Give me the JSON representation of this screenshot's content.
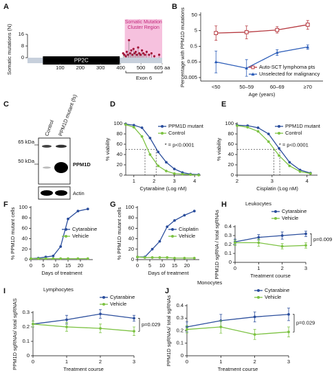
{
  "chart_data": [
    {
      "type": "lollipop",
      "panel": "A",
      "ylabel": "Somatic mutations (N)",
      "xlim": [
        0,
        605
      ],
      "xticks": [
        100,
        200,
        300,
        400,
        500,
        {
          "value": 605,
          "label": "605 aa"
        }
      ],
      "ylim": [
        0,
        16
      ],
      "yticks": [
        0,
        8,
        16
      ],
      "domain": {
        "name": "PP2C",
        "start": 15,
        "end": 395
      },
      "region": {
        "label": "Somatic Mutation Cluster Region",
        "start": 420,
        "end": 605
      },
      "exon": {
        "label": "Exon 6",
        "start": 425,
        "end": 605
      },
      "positions": [
        412,
        418,
        425,
        430,
        436,
        441,
        447,
        452,
        458,
        463,
        469,
        474,
        480,
        486,
        492,
        498,
        505,
        512,
        520,
        528,
        540,
        552,
        566,
        590
      ],
      "values": [
        3,
        2,
        1,
        4,
        2,
        12,
        3,
        5,
        2,
        6,
        3,
        4,
        2,
        7,
        3,
        2,
        5,
        3,
        2,
        4,
        2,
        3,
        1,
        2
      ],
      "color": "#a3163a"
    },
    {
      "type": "line",
      "panel": "B",
      "xlabel": "Age (years)",
      "ylabel": "Percentage with PPM1D mutations",
      "categories": [
        "<50",
        "50–59",
        "60–69",
        "≥70"
      ],
      "ylog": true,
      "ylim": [
        0.003,
        60
      ],
      "yticks": [
        0.005,
        0.05,
        0.5,
        5,
        50
      ],
      "legend": "lower right",
      "series": [
        {
          "name": "Auto-SCT lymphoma pts",
          "color": "#b5363d",
          "marker": "square",
          "values": [
            3.5,
            4,
            5.5,
            12
          ],
          "lower": [
            1.2,
            1.5,
            3.5,
            6
          ],
          "upper": [
            10,
            10,
            9,
            22
          ]
        },
        {
          "name": "Unselected for malignancy",
          "color": "#2b5cb8",
          "marker": "triangle",
          "values": [
            0.05,
            0.02,
            0.2,
            0.45
          ],
          "lower": [
            0.01,
            0.006,
            0.13,
            0.32
          ],
          "upper": [
            0.25,
            0.07,
            0.3,
            0.62
          ]
        }
      ]
    },
    {
      "type": "line",
      "panel": "D",
      "xlabel": "Cytarabine (Log nM)",
      "ylabel": "% viability",
      "x": [
        0.6,
        1.0,
        1.4,
        1.8,
        2.2,
        2.6,
        3.0,
        3.4,
        3.8,
        4.2
      ],
      "xlim": [
        0.6,
        4.3
      ],
      "xticks": [
        1,
        2,
        3,
        4
      ],
      "ylim": [
        0,
        100
      ],
      "yticks": [
        0,
        20,
        40,
        60,
        80,
        100
      ],
      "legend": "upper right",
      "annotation": "* = p<0.0001",
      "ref": {
        "x": [
          1.55,
          2.1
        ],
        "y": 50
      },
      "series": [
        {
          "name": "PPM1D mutant",
          "color": "#2a4d9c",
          "marker": "circle",
          "values": [
            99,
            97,
            92,
            72,
            45,
            25,
            12,
            5,
            2,
            1
          ]
        },
        {
          "name": "Control",
          "color": "#7cc242",
          "marker": "circle",
          "values": [
            98,
            93,
            75,
            40,
            18,
            8,
            3,
            2,
            1,
            0
          ]
        }
      ]
    },
    {
      "type": "line",
      "panel": "E",
      "xlabel": "Cisplatin (Log nM)",
      "ylabel": "% viability",
      "x": [
        2.0,
        2.3,
        2.6,
        2.9,
        3.2,
        3.5,
        3.8,
        4.1
      ],
      "xlim": [
        2,
        4.3
      ],
      "xticks": [
        2,
        3,
        4
      ],
      "ylim": [
        0,
        100
      ],
      "yticks": [
        0,
        20,
        40,
        60,
        80,
        100
      ],
      "legend": "upper right",
      "annotation": "* = p<0.0001",
      "ref": {
        "x": [
          3.05,
          3.22
        ],
        "y": 50
      },
      "series": [
        {
          "name": "PPM1D mutant",
          "color": "#2a4d9c",
          "marker": "circle",
          "values": [
            97,
            96,
            92,
            80,
            52,
            25,
            10,
            4
          ]
        },
        {
          "name": "Control",
          "color": "#7cc242",
          "marker": "circle",
          "values": [
            96,
            93,
            85,
            65,
            38,
            18,
            7,
            3
          ]
        }
      ]
    },
    {
      "type": "line",
      "panel": "F",
      "xlabel": "Days of treatment",
      "ylabel": "% PPM1D mutant cells",
      "x": [
        0,
        3,
        6,
        9,
        12,
        15,
        19,
        23
      ],
      "xlim": [
        0,
        25
      ],
      "xticks": [
        0,
        5,
        10,
        15,
        20
      ],
      "ylim": [
        0,
        100
      ],
      "yticks": [
        0,
        20,
        40,
        60,
        80,
        100
      ],
      "legend": "center right",
      "series": [
        {
          "name": "Cytarabine",
          "color": "#2a4d9c",
          "marker": "circle",
          "values": [
            2,
            3,
            5,
            7,
            25,
            78,
            93,
            97
          ]
        },
        {
          "name": "Vehicle",
          "color": "#7cc242",
          "marker": "circle",
          "values": [
            2,
            2,
            2,
            2,
            2,
            2,
            2,
            2
          ]
        }
      ]
    },
    {
      "type": "line",
      "panel": "G",
      "xlabel": "Days of treatment",
      "ylabel": "% PPM1D mutant cells",
      "x": [
        0,
        3,
        6,
        9,
        12,
        15,
        19,
        23
      ],
      "xlim": [
        0,
        25
      ],
      "xticks": [
        0,
        5,
        10,
        15,
        20
      ],
      "ylim": [
        0,
        100
      ],
      "yticks": [
        0,
        20,
        40,
        60,
        80,
        100
      ],
      "legend": "center right",
      "series": [
        {
          "name": "Cisplatin",
          "color": "#2a4d9c",
          "marker": "circle",
          "values": [
            5,
            5,
            20,
            35,
            63,
            75,
            85,
            93
          ]
        },
        {
          "name": "Vehicle",
          "color": "#7cc242",
          "marker": "circle",
          "values": [
            5,
            4,
            4,
            4,
            4,
            3,
            3,
            3
          ]
        }
      ]
    },
    {
      "type": "line",
      "panel": "H",
      "title": "Leukocytes",
      "xlabel": "Treatment course",
      "ylabel": "PPM1D sgRNA / total sgRNAs",
      "x": [
        0,
        1,
        2,
        3
      ],
      "xlim": [
        0,
        3
      ],
      "xticks": [
        0,
        1,
        2,
        3
      ],
      "ylim": [
        0,
        0.4
      ],
      "yticks": [
        0,
        0.1,
        0.2,
        0.3,
        0.4
      ],
      "legend": "top",
      "annotation": "p=0.009",
      "bracket": true,
      "series": [
        {
          "name": "Cytarabine",
          "color": "#2a4d9c",
          "marker": "circle",
          "values": [
            0.23,
            0.28,
            0.3,
            0.32
          ],
          "errors": [
            0.03,
            0.03,
            0.04,
            0.03
          ]
        },
        {
          "name": "Vehicle",
          "color": "#7cc242",
          "marker": "circle",
          "values": [
            0.22,
            0.22,
            0.18,
            0.19
          ],
          "errors": [
            0.03,
            0.04,
            0.03,
            0.03
          ]
        }
      ]
    },
    {
      "type": "line",
      "panel": "I",
      "title": "Lymphocytes",
      "xlabel": "Treatment course",
      "ylabel": "PPM1D sgRNAs/ total sgRNAS",
      "x": [
        0,
        1,
        2,
        3
      ],
      "xlim": [
        0,
        3
      ],
      "xticks": [
        0,
        1,
        2,
        3
      ],
      "ylim": [
        0,
        0.3
      ],
      "yticks": [
        0,
        0.1,
        0.2,
        0.3
      ],
      "legend": "top",
      "annotation": "p=0.029",
      "bracket": true,
      "series": [
        {
          "name": "Cytarabine",
          "color": "#2a4d9c",
          "marker": "circle",
          "values": [
            0.22,
            0.25,
            0.29,
            0.26
          ],
          "errors": [
            0.02,
            0.03,
            0.03,
            0.02
          ]
        },
        {
          "name": "Vehicle",
          "color": "#7cc242",
          "marker": "circle",
          "values": [
            0.22,
            0.2,
            0.19,
            0.17
          ],
          "errors": [
            0.02,
            0.03,
            0.03,
            0.03
          ]
        }
      ]
    },
    {
      "type": "line",
      "panel": "J",
      "title": "Monocytes",
      "xlabel": "Treatment course",
      "ylabel": "PPM1D sgRNAs/ total sgRNAs",
      "x": [
        0,
        1,
        2,
        3
      ],
      "xlim": [
        0,
        3
      ],
      "xticks": [
        0,
        1,
        2,
        3
      ],
      "ylim": [
        0,
        0.4
      ],
      "yticks": [
        0,
        0.1,
        0.2,
        0.3,
        0.4
      ],
      "legend": "top",
      "annotation": "p=0.029",
      "bracket": true,
      "series": [
        {
          "name": "Cytarabine",
          "color": "#2a4d9c",
          "marker": "circle",
          "values": [
            0.23,
            0.28,
            0.31,
            0.33
          ],
          "errors": [
            0.04,
            0.05,
            0.04,
            0.05
          ]
        },
        {
          "name": "Vehicle",
          "color": "#7cc242",
          "marker": "circle",
          "values": [
            0.21,
            0.23,
            0.17,
            0.19
          ],
          "errors": [
            0.03,
            0.05,
            0.04,
            0.04
          ]
        }
      ]
    }
  ],
  "blot": {
    "panel": "C",
    "lanes": [
      "Control",
      "PPM1D mutant (fs)"
    ],
    "markers": [
      "65 kDa",
      "50 kDa"
    ],
    "bands": [
      "PPM1D",
      "Actin"
    ]
  }
}
